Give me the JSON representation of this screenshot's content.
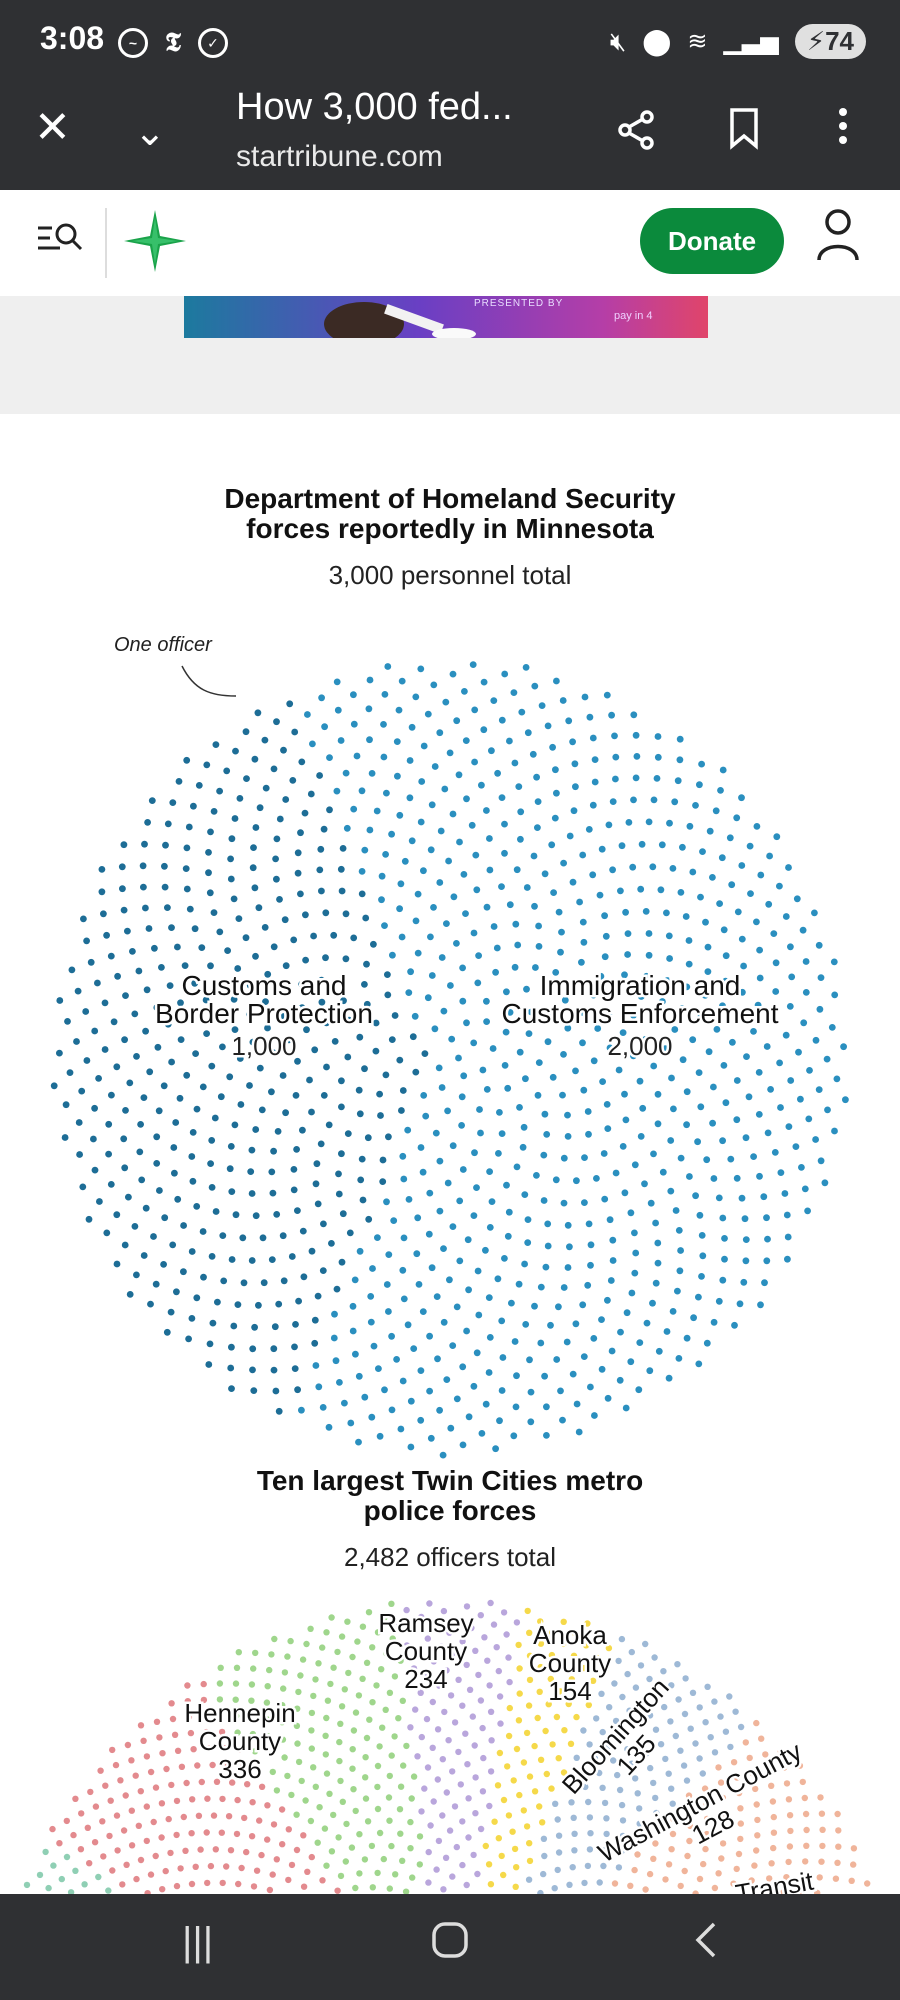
{
  "status_bar": {
    "time": "3:08",
    "battery": "74"
  },
  "browser": {
    "page_title": "How 3,000 fed...",
    "domain": "startribune.com"
  },
  "site_header": {
    "donate_label": "Donate"
  },
  "ad": {
    "presented_by": "PRESENTED BY",
    "pay_in_4": "pay in 4"
  },
  "chart1": {
    "title_line1": "Department of Homeland Security",
    "title_line2": "forces reportedly in Minnesota",
    "subtitle": "3,000 personnel total",
    "annotation": "One officer"
  },
  "chart2": {
    "title_line1": "Ten largest Twin Cities metro",
    "title_line2": "police forces",
    "subtitle": "2,482 officers total"
  },
  "chart_data": [
    {
      "type": "dot-circle",
      "title": "Department of Homeland Security forces reportedly in Minnesota",
      "subtitle": "3,000 personnel total",
      "series": [
        {
          "name_line1": "Customs and",
          "name_line2": "Border Protection",
          "label": "1,000",
          "value": 1000,
          "color": "#1d6d96"
        },
        {
          "name_line1": "Immigration and",
          "name_line2": "Customs Enforcement",
          "label": "2,000",
          "value": 2000,
          "color": "#2a8fbf"
        }
      ]
    },
    {
      "type": "dot-fan",
      "title": "Ten largest Twin Cities metro police forces",
      "subtitle": "2,482 officers total",
      "series": [
        {
          "name_line1": "Hennepin",
          "name_line2": "County",
          "label": "336",
          "value": 336,
          "color": "#e38a8e"
        },
        {
          "name_line1": "Ramsey",
          "name_line2": "County",
          "label": "234",
          "value": 234,
          "color": "#9fd68c"
        },
        {
          "name_line1": "Anoka",
          "name_line2": "County",
          "label": "154",
          "value": 154,
          "color": "#b9a6dc"
        },
        {
          "name_line1": "Bloomington",
          "name_line2": "",
          "label": "135",
          "value": 135,
          "color": "#f5d94a"
        },
        {
          "name_line1": "Washington County",
          "name_line2": "",
          "label": "128",
          "value": 128,
          "color": "#9eb9d6"
        },
        {
          "name_line1": "Transit",
          "name_line2": "",
          "label": "",
          "value": null,
          "color": "#f0b49a"
        }
      ]
    }
  ]
}
